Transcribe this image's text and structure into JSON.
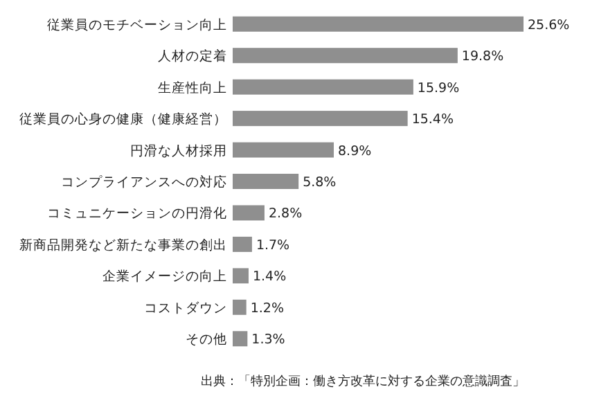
{
  "chart_data": {
    "type": "bar",
    "orientation": "horizontal",
    "categories": [
      "従業員のモチベーション向上",
      "人材の定着",
      "生産性向上",
      "従業員の心身の健康（健康経営）",
      "円滑な人材採用",
      "コンプライアンスへの対応",
      "コミュニケーションの円滑化",
      "新商品開発など新たな事業の創出",
      "企業イメージの向上",
      "コストダウン",
      "その他"
    ],
    "values": [
      25.6,
      19.8,
      15.9,
      15.4,
      8.9,
      5.8,
      2.8,
      1.7,
      1.4,
      1.2,
      1.3
    ],
    "value_labels": [
      "25.6%",
      "19.8%",
      "15.9%",
      "15.4%",
      "8.9%",
      "5.8%",
      "2.8%",
      "1.7%",
      "1.4%",
      "1.2%",
      "1.3%"
    ],
    "color": "#8f8f8f",
    "annotations": [
      "出典：「特別企画：働き方改革に対する企業の意識調査」"
    ]
  }
}
